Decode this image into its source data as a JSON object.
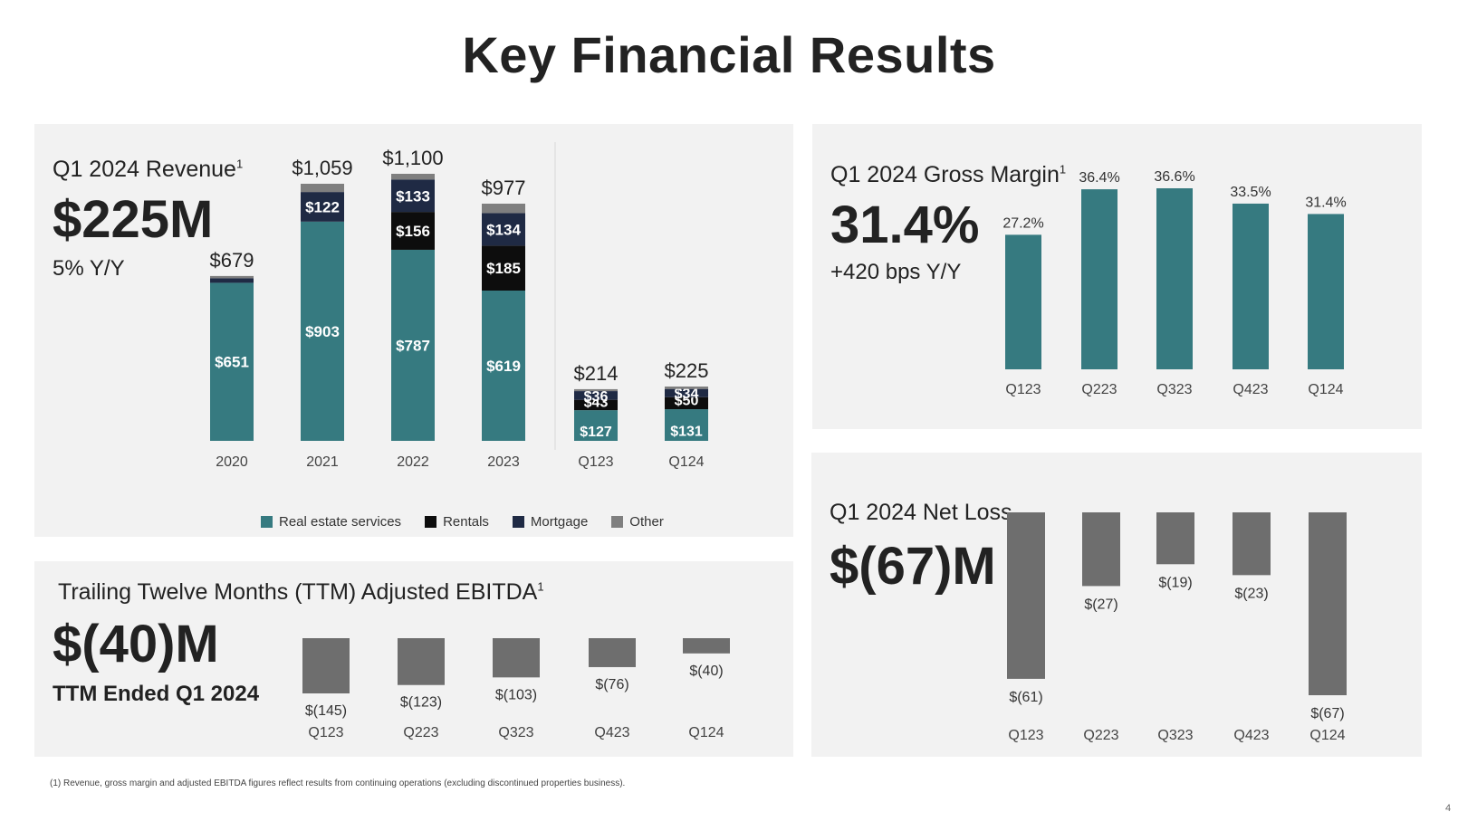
{
  "title": "Key Financial Results",
  "footnote": "(1) Revenue, gross margin and adjusted EBITDA figures reflect results from continuing operations (excluding discontinued properties business).",
  "page_number": "4",
  "colors": {
    "real_estate": "#367a80",
    "rentals": "#0d0d0d",
    "mortgage": "#1f2a44",
    "other": "#7f7f7f",
    "loss_bar": "#6e6e6e",
    "panel_bg": "#f2f2f2"
  },
  "revenue": {
    "title": "Q1 2024 Revenue",
    "superscript": "1",
    "big_value": "$225M",
    "sub_value": "5% Y/Y",
    "legend": [
      {
        "label": "Real estate services",
        "color": "#367a80"
      },
      {
        "label": "Rentals",
        "color": "#0d0d0d"
      },
      {
        "label": "Mortgage",
        "color": "#1f2a44"
      },
      {
        "label": "Other",
        "color": "#7f7f7f"
      }
    ]
  },
  "gross_margin": {
    "title": "Q1 2024 Gross Margin",
    "superscript": "1",
    "big_value": "31.4%",
    "sub_value": "+420 bps Y/Y"
  },
  "net_loss": {
    "title": "Q1 2024 Net Loss",
    "big_value": "$(67)M"
  },
  "ebitda": {
    "title": "Trailing Twelve Months (TTM) Adjusted EBITDA",
    "superscript": "1",
    "big_value": "$(40)M",
    "sub_value": "TTM Ended Q1 2024"
  },
  "chart_data": [
    {
      "id": "revenue",
      "type": "bar",
      "stacked": true,
      "unit": "$M",
      "categories": [
        "2020",
        "2021",
        "2022",
        "2023",
        "Q123",
        "Q124"
      ],
      "totals": [
        679,
        1059,
        1100,
        977,
        214,
        225
      ],
      "total_labels": [
        "$679",
        "$1,059",
        "$1,100",
        "$977",
        "$214",
        "$225"
      ],
      "series": [
        {
          "name": "Real estate services",
          "color": "#367a80",
          "values": [
            651,
            903,
            787,
            619,
            127,
            131
          ],
          "labels": [
            "$651",
            "$903",
            "$787",
            "$619",
            "$127",
            "$131"
          ]
        },
        {
          "name": "Rentals",
          "color": "#0d0d0d",
          "values": [
            0,
            0,
            156,
            185,
            43,
            50
          ],
          "labels": [
            "",
            "",
            "$156",
            "$185",
            "$43",
            "$50"
          ]
        },
        {
          "name": "Mortgage",
          "color": "#1f2a44",
          "values": [
            19,
            122,
            133,
            134,
            36,
            34
          ],
          "labels": [
            "",
            "$122",
            "$133",
            "$134",
            "$36",
            "$34"
          ]
        },
        {
          "name": "Other",
          "color": "#7f7f7f",
          "values": [
            9,
            34,
            24,
            39,
            8,
            10
          ],
          "labels": [
            "",
            "",
            "",
            "",
            "",
            ""
          ]
        }
      ],
      "annual_scale_max": 1100,
      "quarterly_scale_max": 1100
    },
    {
      "id": "gross_margin",
      "type": "bar",
      "unit": "%",
      "categories": [
        "Q123",
        "Q223",
        "Q323",
        "Q423",
        "Q124"
      ],
      "values": [
        27.2,
        36.4,
        36.6,
        33.5,
        31.4
      ],
      "labels": [
        "27.2%",
        "36.4%",
        "36.6%",
        "33.5%",
        "31.4%"
      ],
      "ylim": [
        0,
        40
      ]
    },
    {
      "id": "net_loss",
      "type": "bar",
      "unit": "$M",
      "categories": [
        "Q123",
        "Q223",
        "Q323",
        "Q423",
        "Q124"
      ],
      "values": [
        -61,
        -27,
        -19,
        -23,
        -67
      ],
      "labels": [
        "$(61)",
        "$(27)",
        "$(19)",
        "$(23)",
        "$(67)"
      ],
      "ylim": [
        -67,
        0
      ]
    },
    {
      "id": "ebitda",
      "type": "bar",
      "unit": "$M",
      "categories": [
        "Q123",
        "Q223",
        "Q323",
        "Q423",
        "Q124"
      ],
      "values": [
        -145,
        -123,
        -103,
        -76,
        -40
      ],
      "labels": [
        "$(145)",
        "$(123)",
        "$(103)",
        "$(76)",
        "$(40)"
      ],
      "ylim": [
        -145,
        0
      ]
    }
  ]
}
